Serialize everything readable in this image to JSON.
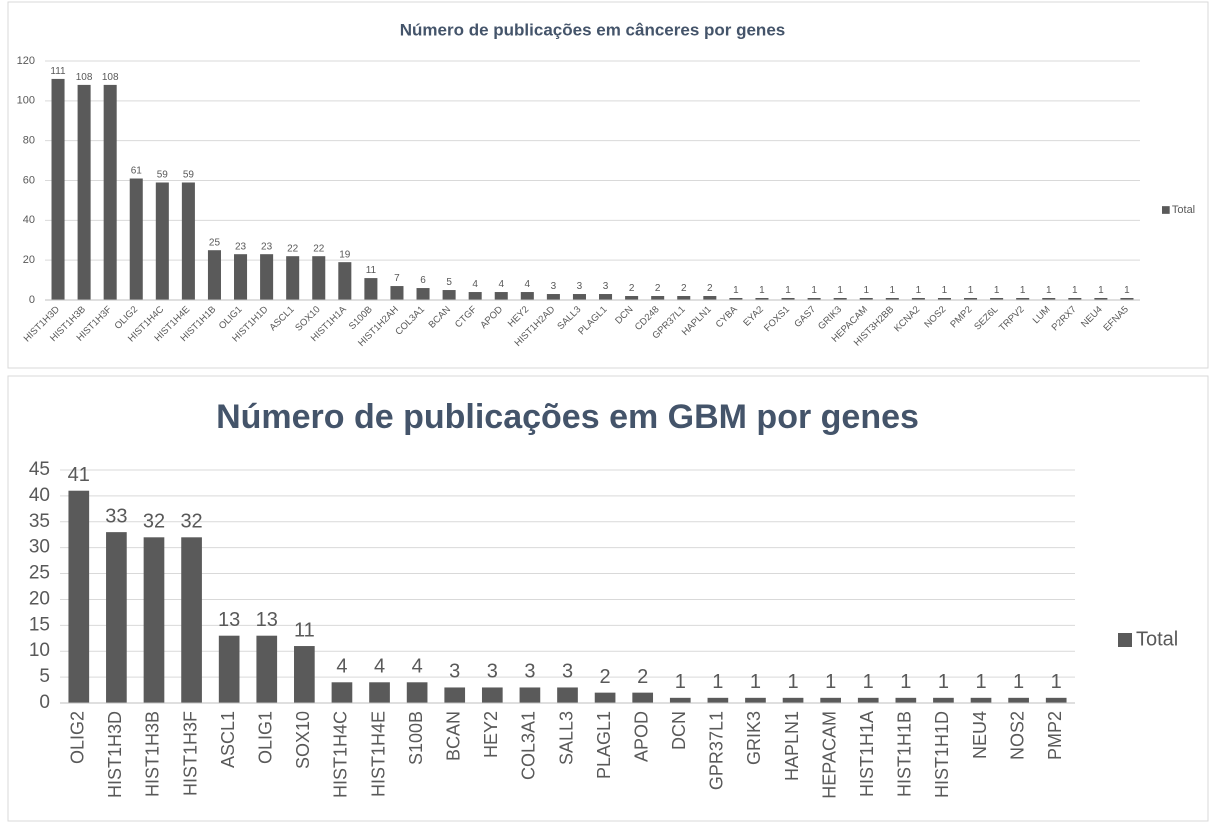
{
  "chart_data": [
    {
      "type": "bar",
      "title": "Número de publicações em cânceres por genes",
      "categories": [
        "HIST1H3D",
        "HIST1H3B",
        "HIST1H3F",
        "OLIG2",
        "HIST1H4C",
        "HIST1H4E",
        "HIST1H1B",
        "OLIG1",
        "HIST1H1D",
        "ASCL1",
        "SOX10",
        "HIST1H1A",
        "S100B",
        "HIST1H2AH",
        "COL3A1",
        "BCAN",
        "CTGF",
        "APOD",
        "HEY2",
        "HIST1H2AD",
        "SALL3",
        "PLAGL1",
        "DCN",
        "CD248",
        "GPR37L1",
        "HAPLN1",
        "CYBA",
        "EYA2",
        "FOXS1",
        "GAS7",
        "GRIK3",
        "HEPACAM",
        "HIST3H2BB",
        "KCNA2",
        "NOS2",
        "PMP2",
        "SEZ6L",
        "TRPV2",
        "LUM",
        "P2RX7",
        "NEU4",
        "EFNA5"
      ],
      "series": [
        {
          "name": "Total",
          "color": "#5a5a5a",
          "values": [
            111,
            108,
            108,
            61,
            59,
            59,
            25,
            23,
            23,
            22,
            22,
            19,
            11,
            7,
            6,
            5,
            4,
            4,
            4,
            3,
            3,
            3,
            2,
            2,
            2,
            2,
            1,
            1,
            1,
            1,
            1,
            1,
            1,
            1,
            1,
            1,
            1,
            1,
            1,
            1,
            1,
            1
          ]
        }
      ],
      "ylim": [
        0,
        120
      ],
      "yticks": [
        0,
        20,
        40,
        60,
        80,
        100,
        120
      ],
      "grid": true,
      "legend": "right"
    },
    {
      "type": "bar",
      "title": "Número de publicações em GBM por genes",
      "categories": [
        "OLIG2",
        "HIST1H3D",
        "HIST1H3B",
        "HIST1H3F",
        "ASCL1",
        "OLIG1",
        "SOX10",
        "HIST1H4C",
        "HIST1H4E",
        "S100B",
        "BCAN",
        "HEY2",
        "COL3A1",
        "SALL3",
        "PLAGL1",
        "APOD",
        "DCN",
        "GPR37L1",
        "GRIK3",
        "HAPLN1",
        "HEPACAM",
        "HIST1H1A",
        "HIST1H1B",
        "HIST1H1D",
        "NEU4",
        "NOS2",
        "PMP2"
      ],
      "series": [
        {
          "name": "Total",
          "color": "#5a5a5a",
          "values": [
            41,
            33,
            32,
            32,
            13,
            13,
            11,
            4,
            4,
            4,
            3,
            3,
            3,
            3,
            2,
            2,
            1,
            1,
            1,
            1,
            1,
            1,
            1,
            1,
            1,
            1,
            1
          ]
        }
      ],
      "ylim": [
        0,
        45
      ],
      "yticks": [
        0,
        5,
        10,
        15,
        20,
        25,
        30,
        35,
        40,
        45
      ],
      "grid": true,
      "legend": "right"
    }
  ]
}
